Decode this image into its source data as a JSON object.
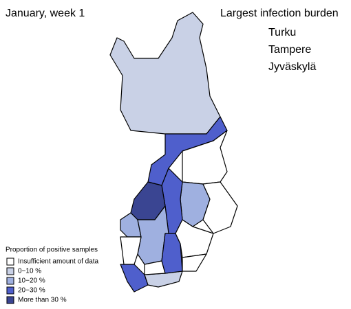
{
  "title": "January, week 1",
  "burden": {
    "title": "Largest infection burden",
    "cities": [
      "Turku",
      "Tampere",
      "Jyväskylä"
    ]
  },
  "legend": {
    "title": "Proportion of positive samples",
    "items": [
      {
        "label": "Insufficient amount of data",
        "color": "#ffffff"
      },
      {
        "label": "0−10 %",
        "color": "#c9d1e6"
      },
      {
        "label": "10−20 %",
        "color": "#9fb0e0"
      },
      {
        "label": "20−30 %",
        "color": "#4f5fcc"
      },
      {
        "label": "More than 30 %",
        "color": "#3a4592"
      }
    ]
  }
}
